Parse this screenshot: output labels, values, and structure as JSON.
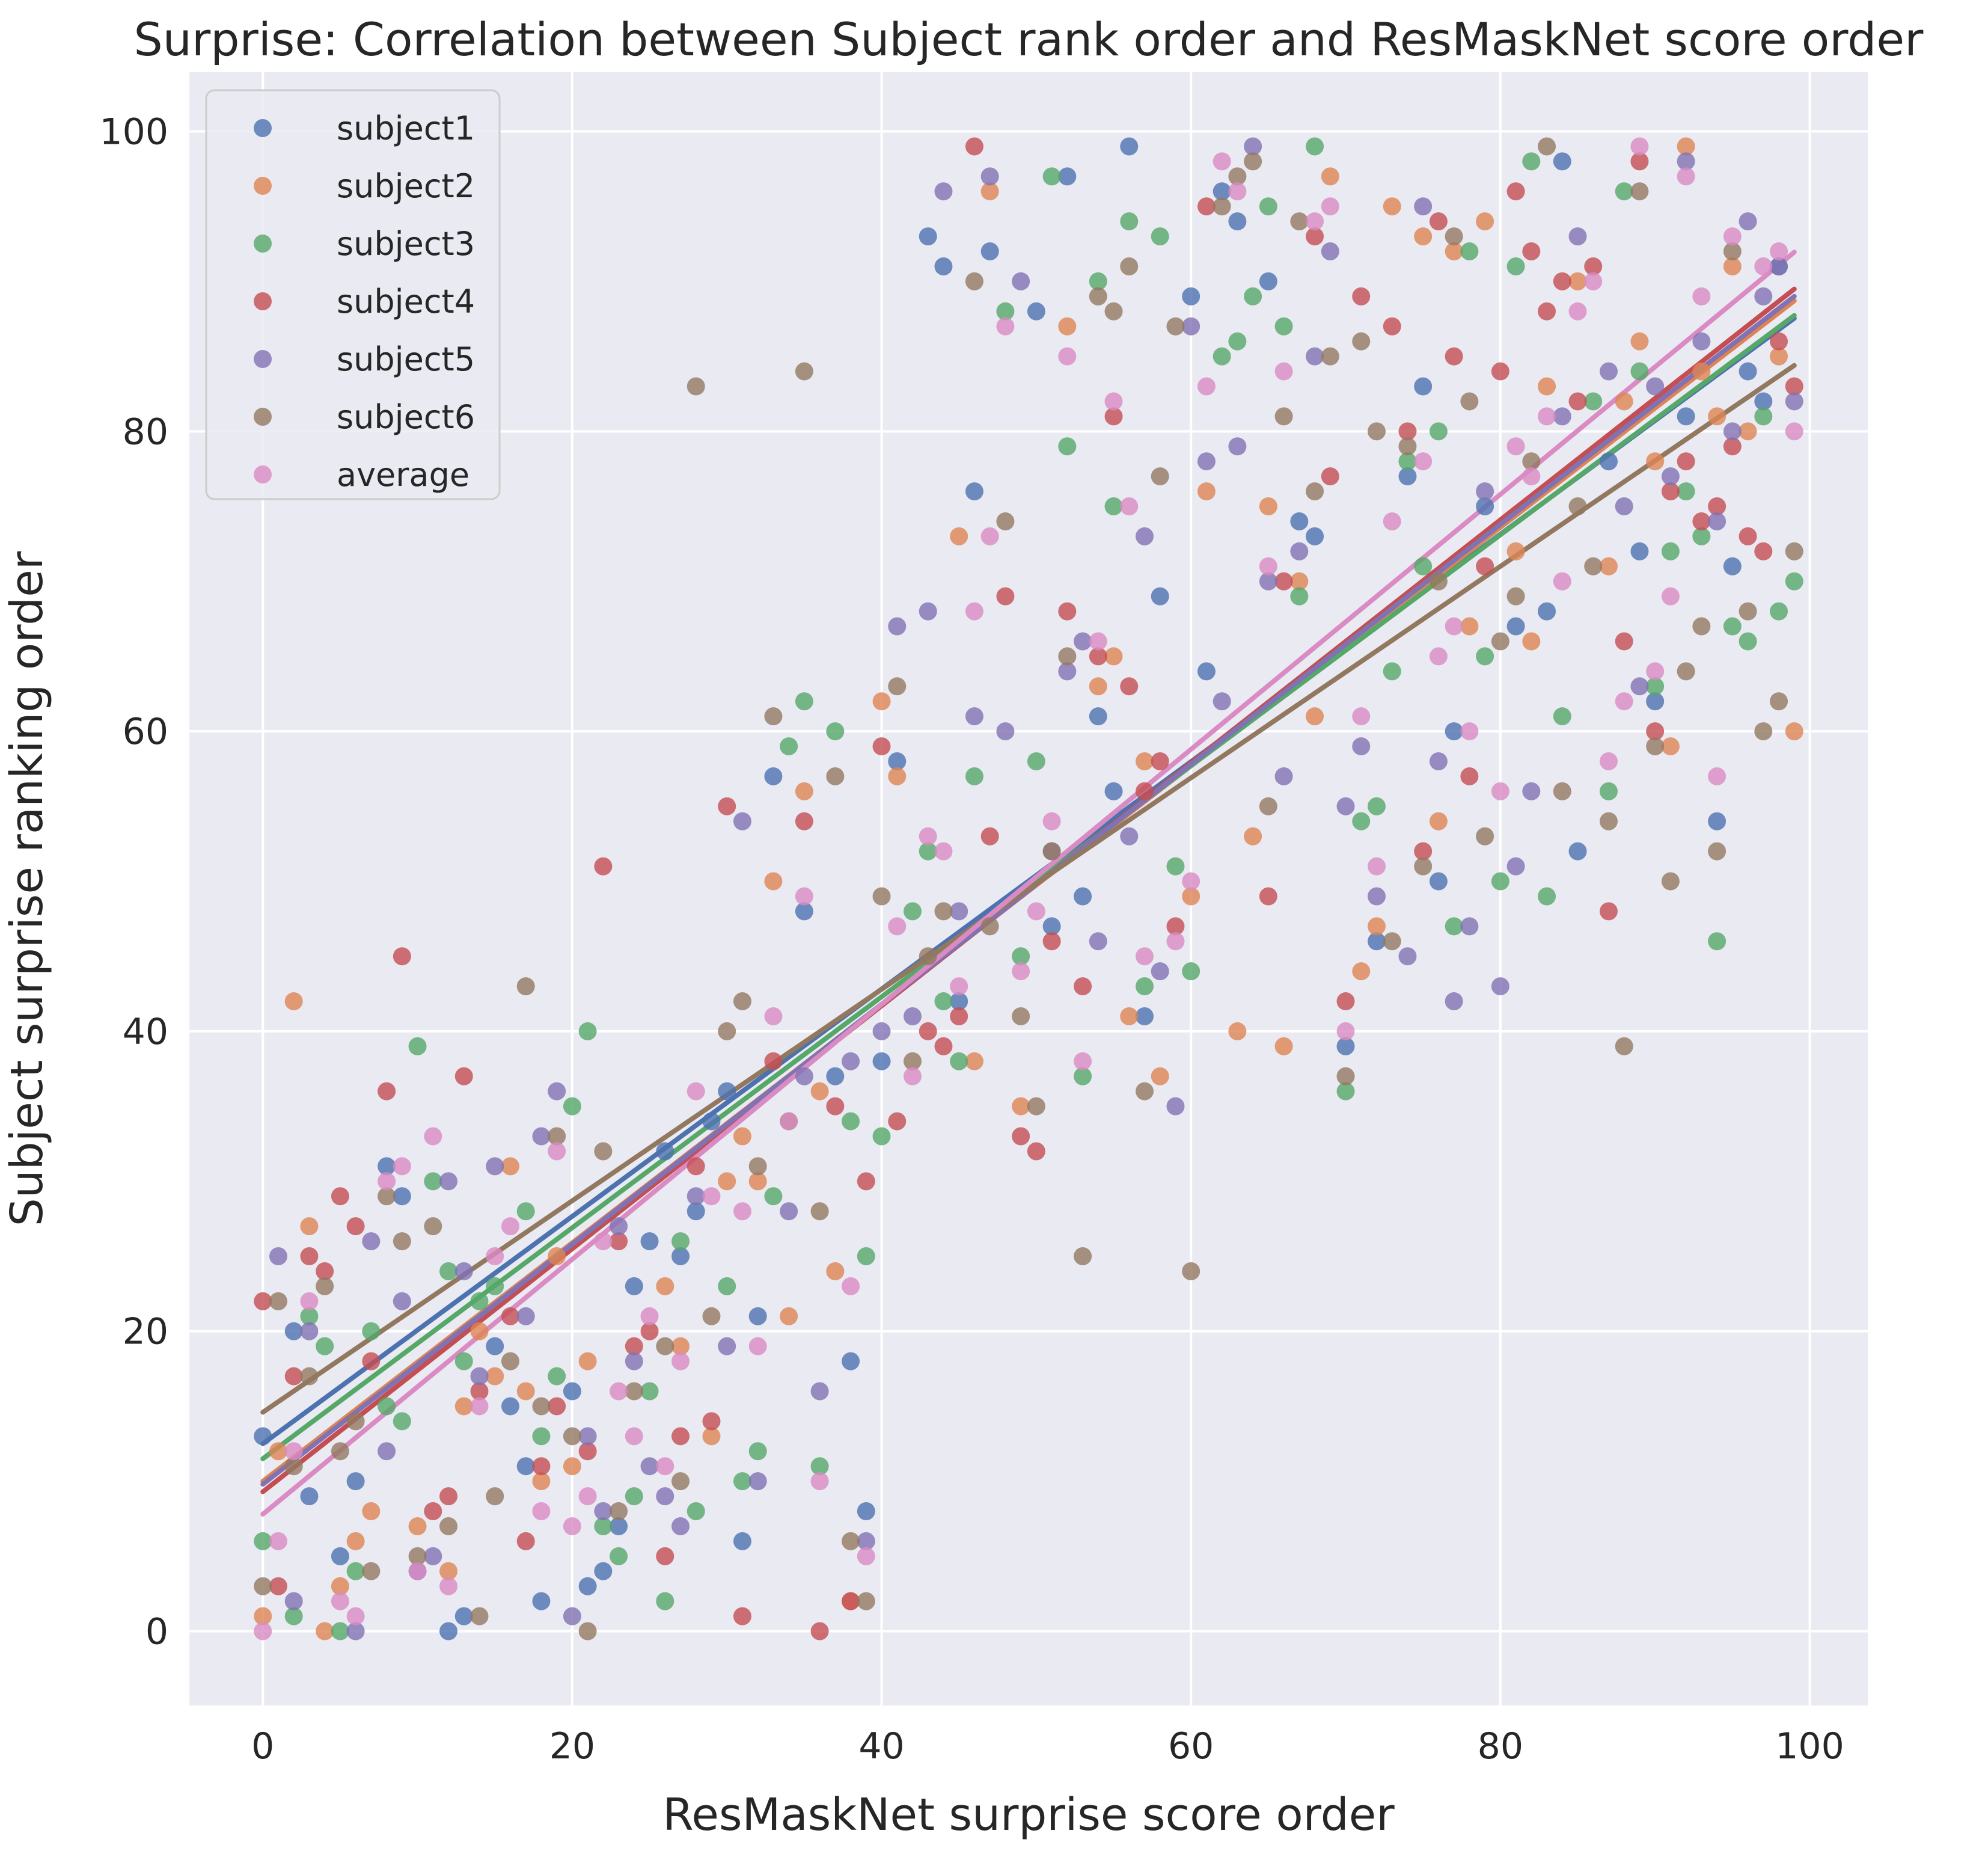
{
  "chart_data": {
    "type": "scatter",
    "title": "Surprise: Correlation between Subject rank order and ResMaskNet score order",
    "xlabel": "ResMaskNet surprise score order",
    "ylabel": "Subject surprise ranking order",
    "xlim": [
      -4.75,
      103.75
    ],
    "ylim": [
      -4.95,
      103.95
    ],
    "xticks": [
      0,
      20,
      40,
      60,
      80,
      100
    ],
    "yticks": [
      0,
      20,
      40,
      60,
      80,
      100
    ],
    "grid": true,
    "legend_position": "top-left",
    "plot_background": "#eaeaf2",
    "series": [
      {
        "name": "subject1",
        "color": "#4c72b0",
        "fit": {
          "intercept": 12.5,
          "slope": 0.758
        },
        "x": [
          0,
          2,
          3,
          5,
          6,
          8,
          9,
          12,
          13,
          15,
          16,
          17,
          18,
          20,
          21,
          22,
          23,
          24,
          25,
          26,
          27,
          28,
          29,
          30,
          31,
          32,
          33,
          35,
          37,
          38,
          39,
          40,
          41,
          43,
          44,
          45,
          46,
          47,
          50,
          51,
          52,
          53,
          54,
          55,
          56,
          57,
          58,
          60,
          61,
          62,
          63,
          65,
          67,
          68,
          70,
          72,
          74,
          75,
          76,
          77,
          79,
          81,
          83,
          84,
          85,
          87,
          89,
          90,
          92,
          94,
          95,
          96,
          97,
          98
        ],
        "y": [
          13,
          20,
          9,
          5,
          10,
          31,
          29,
          0,
          1,
          19,
          15,
          11,
          2,
          16,
          3,
          4,
          7,
          23,
          26,
          32,
          25,
          28,
          34,
          36,
          6,
          21,
          57,
          48,
          37,
          18,
          8,
          38,
          58,
          93,
          91,
          42,
          76,
          92,
          88,
          47,
          97,
          49,
          61,
          56,
          99,
          41,
          69,
          89,
          64,
          96,
          94,
          90,
          74,
          73,
          39,
          46,
          77,
          83,
          50,
          60,
          75,
          67,
          68,
          98,
          52,
          78,
          72,
          62,
          81,
          54,
          71,
          84,
          82,
          91
        ]
      },
      {
        "name": "subject2",
        "color": "#dd8452",
        "fit": {
          "intercept": 10.0,
          "slope": 0.795
        },
        "x": [
          0,
          1,
          2,
          3,
          4,
          5,
          6,
          7,
          10,
          12,
          13,
          14,
          15,
          16,
          17,
          18,
          19,
          20,
          21,
          26,
          27,
          29,
          30,
          31,
          32,
          33,
          34,
          35,
          36,
          37,
          38,
          40,
          41,
          45,
          46,
          47,
          49,
          52,
          54,
          55,
          56,
          57,
          58,
          60,
          61,
          63,
          64,
          65,
          66,
          67,
          68,
          69,
          71,
          72,
          73,
          75,
          76,
          77,
          78,
          79,
          81,
          82,
          83,
          85,
          87,
          88,
          89,
          90,
          91,
          92,
          93,
          94,
          95,
          96,
          98,
          99
        ],
        "y": [
          1,
          12,
          42,
          27,
          0,
          3,
          6,
          8,
          7,
          4,
          15,
          20,
          17,
          31,
          16,
          10,
          25,
          11,
          18,
          23,
          19,
          13,
          30,
          33,
          30,
          50,
          21,
          56,
          36,
          24,
          2,
          62,
          57,
          73,
          38,
          96,
          35,
          87,
          63,
          65,
          41,
          58,
          37,
          49,
          76,
          40,
          53,
          75,
          39,
          70,
          61,
          97,
          44,
          47,
          95,
          93,
          54,
          92,
          67,
          94,
          72,
          66,
          83,
          90,
          71,
          82,
          86,
          78,
          59,
          99,
          84,
          81,
          91,
          80,
          85,
          60
        ]
      },
      {
        "name": "subject3",
        "color": "#55a868",
        "fit": {
          "intercept": 11.5,
          "slope": 0.77
        },
        "x": [
          0,
          2,
          3,
          4,
          5,
          6,
          7,
          8,
          9,
          10,
          11,
          12,
          13,
          14,
          15,
          17,
          18,
          19,
          20,
          21,
          22,
          23,
          24,
          25,
          26,
          27,
          28,
          30,
          31,
          32,
          33,
          34,
          35,
          36,
          37,
          38,
          39,
          40,
          42,
          43,
          44,
          45,
          46,
          48,
          49,
          50,
          51,
          52,
          53,
          54,
          55,
          56,
          57,
          58,
          59,
          60,
          62,
          63,
          64,
          65,
          66,
          67,
          68,
          70,
          71,
          72,
          73,
          74,
          75,
          76,
          77,
          78,
          79,
          80,
          81,
          82,
          83,
          84,
          86,
          87,
          88,
          89,
          90,
          91,
          92,
          93,
          94,
          95,
          96,
          97,
          98,
          99
        ],
        "y": [
          6,
          1,
          21,
          19,
          0,
          4,
          20,
          15,
          14,
          39,
          30,
          24,
          18,
          22,
          23,
          28,
          13,
          17,
          35,
          40,
          7,
          5,
          9,
          16,
          2,
          26,
          8,
          23,
          10,
          12,
          29,
          59,
          62,
          11,
          60,
          34,
          25,
          33,
          48,
          52,
          42,
          38,
          57,
          88,
          45,
          58,
          97,
          79,
          37,
          90,
          75,
          94,
          43,
          93,
          51,
          44,
          85,
          86,
          89,
          95,
          87,
          69,
          99,
          36,
          54,
          55,
          64,
          78,
          71,
          80,
          47,
          92,
          65,
          50,
          91,
          98,
          49,
          61,
          82,
          56,
          96,
          84,
          63,
          72,
          76,
          73,
          46,
          67,
          66,
          81,
          68,
          70
        ]
      },
      {
        "name": "subject4",
        "color": "#c44e52",
        "fit": {
          "intercept": 9.3,
          "slope": 0.81
        },
        "x": [
          0,
          1,
          2,
          3,
          4,
          5,
          6,
          7,
          8,
          9,
          11,
          12,
          13,
          14,
          16,
          17,
          18,
          19,
          21,
          22,
          23,
          24,
          25,
          26,
          27,
          28,
          29,
          30,
          31,
          33,
          35,
          36,
          37,
          38,
          39,
          40,
          41,
          43,
          44,
          45,
          46,
          47,
          48,
          49,
          50,
          51,
          52,
          53,
          54,
          55,
          56,
          57,
          58,
          59,
          61,
          65,
          66,
          68,
          69,
          70,
          71,
          73,
          74,
          75,
          76,
          77,
          78,
          79,
          80,
          81,
          82,
          83,
          84,
          85,
          86,
          87,
          88,
          89,
          90,
          91,
          92,
          93,
          94,
          95,
          96,
          97,
          98,
          99
        ],
        "y": [
          22,
          3,
          17,
          25,
          24,
          29,
          27,
          18,
          36,
          45,
          8,
          9,
          37,
          16,
          21,
          6,
          11,
          15,
          12,
          51,
          26,
          19,
          20,
          5,
          13,
          31,
          14,
          55,
          1,
          38,
          54,
          0,
          35,
          2,
          30,
          59,
          34,
          40,
          39,
          41,
          99,
          53,
          69,
          33,
          32,
          46,
          68,
          43,
          65,
          81,
          63,
          56,
          58,
          47,
          95,
          49,
          70,
          93,
          77,
          42,
          89,
          87,
          80,
          52,
          94,
          85,
          57,
          71,
          84,
          96,
          92,
          88,
          90,
          82,
          91,
          48,
          66,
          98,
          60,
          76,
          78,
          74,
          75,
          79,
          73,
          72,
          86,
          83
        ]
      },
      {
        "name": "subject5",
        "color": "#8172b3",
        "fit": {
          "intercept": 9.8,
          "slope": 0.8
        },
        "x": [
          1,
          2,
          3,
          6,
          7,
          8,
          9,
          10,
          11,
          12,
          13,
          14,
          15,
          17,
          18,
          19,
          20,
          21,
          22,
          23,
          24,
          25,
          26,
          27,
          28,
          30,
          31,
          32,
          34,
          35,
          36,
          38,
          39,
          40,
          41,
          42,
          43,
          44,
          45,
          46,
          47,
          48,
          49,
          51,
          52,
          53,
          54,
          56,
          57,
          58,
          59,
          60,
          61,
          62,
          63,
          64,
          65,
          66,
          67,
          68,
          69,
          70,
          71,
          72,
          74,
          75,
          76,
          77,
          78,
          79,
          80,
          81,
          82,
          84,
          85,
          87,
          88,
          89,
          90,
          91,
          92,
          93,
          94,
          95,
          96,
          97,
          98,
          99
        ],
        "y": [
          25,
          2,
          20,
          0,
          26,
          12,
          22,
          4,
          5,
          30,
          24,
          17,
          31,
          21,
          33,
          36,
          1,
          13,
          8,
          27,
          18,
          11,
          9,
          7,
          29,
          19,
          54,
          10,
          28,
          37,
          16,
          38,
          6,
          40,
          67,
          41,
          68,
          96,
          48,
          61,
          97,
          60,
          90,
          52,
          64,
          66,
          46,
          53,
          73,
          44,
          35,
          87,
          78,
          62,
          79,
          99,
          70,
          57,
          72,
          85,
          92,
          55,
          59,
          49,
          45,
          95,
          58,
          42,
          47,
          76,
          43,
          51,
          56,
          81,
          93,
          84,
          75,
          63,
          83,
          77,
          98,
          86,
          74,
          80,
          94,
          89,
          91,
          82
        ]
      },
      {
        "name": "subject6",
        "color": "#937860",
        "fit": {
          "intercept": 14.6,
          "slope": 0.705
        },
        "x": [
          0,
          1,
          2,
          3,
          4,
          5,
          6,
          7,
          8,
          9,
          10,
          11,
          12,
          14,
          15,
          16,
          17,
          18,
          19,
          20,
          21,
          22,
          23,
          24,
          26,
          27,
          28,
          29,
          30,
          31,
          32,
          33,
          34,
          35,
          36,
          37,
          38,
          39,
          40,
          41,
          42,
          43,
          44,
          46,
          47,
          48,
          49,
          50,
          51,
          52,
          53,
          54,
          55,
          56,
          57,
          58,
          59,
          60,
          62,
          63,
          64,
          65,
          66,
          67,
          68,
          69,
          70,
          71,
          72,
          73,
          74,
          75,
          76,
          77,
          78,
          79,
          80,
          81,
          82,
          83,
          84,
          85,
          86,
          87,
          88,
          89,
          90,
          91,
          92,
          93,
          94,
          95,
          96,
          97,
          98,
          99
        ],
        "y": [
          3,
          22,
          11,
          17,
          23,
          12,
          14,
          4,
          29,
          26,
          5,
          27,
          7,
          1,
          9,
          18,
          43,
          15,
          33,
          13,
          0,
          32,
          8,
          16,
          19,
          10,
          83,
          21,
          40,
          42,
          31,
          61,
          34,
          84,
          28,
          57,
          6,
          2,
          49,
          63,
          38,
          45,
          48,
          90,
          47,
          74,
          41,
          35,
          52,
          65,
          25,
          89,
          88,
          91,
          36,
          77,
          87,
          24,
          95,
          97,
          98,
          55,
          81,
          94,
          76,
          85,
          37,
          86,
          80,
          46,
          79,
          51,
          70,
          93,
          82,
          53,
          66,
          69,
          78,
          99,
          56,
          75,
          71,
          54,
          39,
          96,
          59,
          50,
          64,
          67,
          52,
          92,
          68,
          60,
          62,
          72
        ]
      },
      {
        "name": "average",
        "color": "#da8bc3",
        "fit": {
          "intercept": 7.8,
          "slope": 0.85
        },
        "x": [
          0,
          1,
          2,
          3,
          5,
          6,
          8,
          9,
          10,
          11,
          12,
          14,
          15,
          16,
          18,
          19,
          20,
          21,
          22,
          23,
          24,
          25,
          26,
          27,
          28,
          29,
          31,
          32,
          33,
          34,
          35,
          36,
          38,
          39,
          41,
          42,
          43,
          44,
          45,
          46,
          47,
          48,
          49,
          50,
          51,
          52,
          53,
          54,
          55,
          56,
          57,
          59,
          60,
          61,
          62,
          63,
          65,
          66,
          68,
          69,
          70,
          71,
          72,
          73,
          75,
          76,
          77,
          78,
          80,
          81,
          82,
          83,
          84,
          85,
          86,
          87,
          88,
          89,
          90,
          91,
          92,
          93,
          94,
          95,
          97,
          98,
          99
        ],
        "y": [
          0,
          6,
          12,
          22,
          2,
          1,
          30,
          31,
          4,
          33,
          3,
          15,
          25,
          27,
          8,
          32,
          7,
          9,
          26,
          16,
          13,
          21,
          11,
          18,
          36,
          29,
          28,
          19,
          41,
          34,
          49,
          10,
          23,
          5,
          47,
          37,
          53,
          52,
          43,
          68,
          73,
          87,
          44,
          48,
          54,
          85,
          38,
          66,
          82,
          75,
          45,
          46,
          50,
          83,
          98,
          96,
          71,
          84,
          94,
          95,
          40,
          61,
          51,
          74,
          78,
          65,
          67,
          60,
          56,
          79,
          77,
          81,
          70,
          88,
          90,
          58,
          62,
          99,
          64,
          69,
          97,
          89,
          57,
          93,
          91,
          92,
          80
        ]
      }
    ]
  }
}
